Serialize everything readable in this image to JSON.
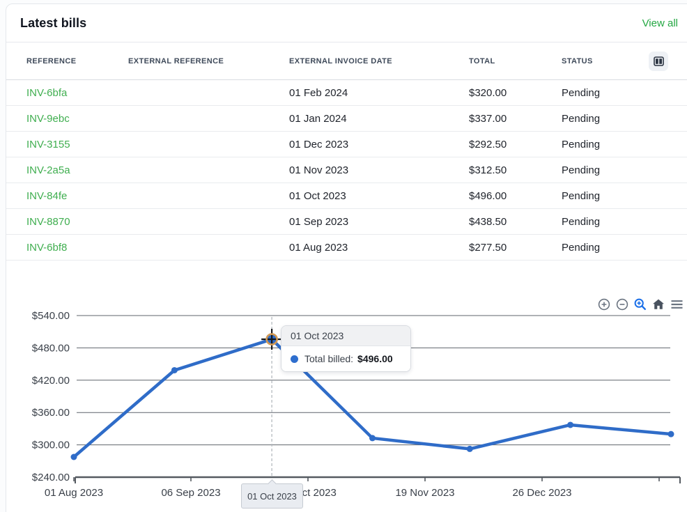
{
  "card": {
    "title": "Latest bills",
    "view_all_label": "View all"
  },
  "table": {
    "columns": [
      "REFERENCE",
      "EXTERNAL REFERENCE",
      "EXTERNAL INVOICE DATE",
      "TOTAL",
      "STATUS"
    ],
    "rows": [
      {
        "reference": "INV-6bfa",
        "external_reference": "",
        "invoice_date": "01 Feb 2024",
        "total": "$320.00",
        "status": "Pending"
      },
      {
        "reference": "INV-9ebc",
        "external_reference": "",
        "invoice_date": "01 Jan 2024",
        "total": "$337.00",
        "status": "Pending"
      },
      {
        "reference": "INV-3155",
        "external_reference": "",
        "invoice_date": "01 Dec 2023",
        "total": "$292.50",
        "status": "Pending"
      },
      {
        "reference": "INV-2a5a",
        "external_reference": "",
        "invoice_date": "01 Nov 2023",
        "total": "$312.50",
        "status": "Pending"
      },
      {
        "reference": "INV-84fe",
        "external_reference": "",
        "invoice_date": "01 Oct 2023",
        "total": "$496.00",
        "status": "Pending"
      },
      {
        "reference": "INV-8870",
        "external_reference": "",
        "invoice_date": "01 Sep 2023",
        "total": "$438.50",
        "status": "Pending"
      },
      {
        "reference": "INV-6bf8",
        "external_reference": "",
        "invoice_date": "01 Aug 2023",
        "total": "$277.50",
        "status": "Pending"
      }
    ]
  },
  "chart_data": {
    "type": "line",
    "series": [
      {
        "name": "Total billed",
        "values": [
          277.5,
          438.5,
          496,
          312.5,
          292.5,
          337,
          320
        ]
      }
    ],
    "x": [
      "01 Aug 2023",
      "01 Sep 2023",
      "01 Oct 2023",
      "01 Nov 2023",
      "01 Dec 2023",
      "01 Jan 2024",
      "01 Feb 2024"
    ],
    "x_day_offsets": [
      0,
      31,
      61,
      92,
      122,
      153,
      184
    ],
    "ylim": [
      240,
      540
    ],
    "yticks": [
      {
        "value": 540,
        "label": "$540.00"
      },
      {
        "value": 480,
        "label": "$480.00"
      },
      {
        "value": 420,
        "label": "$420.00"
      },
      {
        "value": 360,
        "label": "$360.00"
      },
      {
        "value": 300,
        "label": "$300.00"
      },
      {
        "value": 240,
        "label": "$240.00"
      }
    ],
    "xticks": [
      "01 Aug 2023",
      "06 Sep 2023",
      "12 Oct 2023",
      "19 Nov 2023",
      "26 Dec 2023",
      ""
    ],
    "grid": true,
    "legend_position": "none",
    "hovered_index": 2,
    "line_color": "#2f6cc8",
    "grid_color": "#5f646b",
    "axis_color": "#555a61",
    "crosshair_color": "#b4b9bf"
  },
  "tooltip": {
    "date": "01 Oct 2023",
    "series_label": "Total billed:",
    "value": "$496.00"
  },
  "axis_pointer": {
    "label": "01 Oct 2023"
  },
  "toolbar": {
    "icons": [
      "zoom-in",
      "zoom-out",
      "zoom-box",
      "home",
      "menu"
    ],
    "active_color": "#1a6fe8",
    "idle_color": "#6a7380",
    "home_color": "#49525f"
  },
  "colors": {
    "link_green": "#3fae4f",
    "view_all_green": "#23a742",
    "tooltip_dot_blue": "#2e6ece"
  }
}
